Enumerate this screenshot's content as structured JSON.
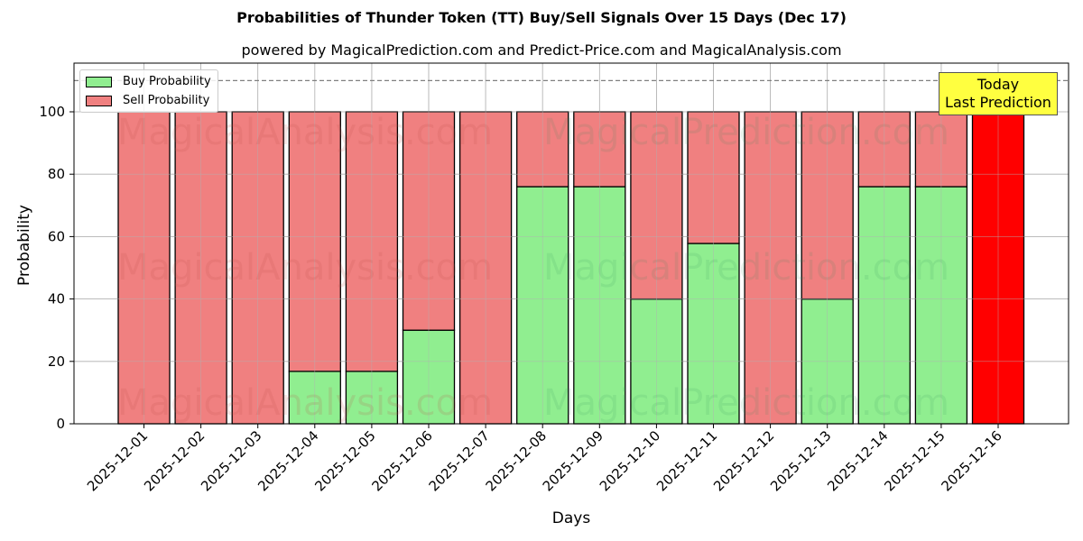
{
  "header": {
    "title": "Probabilities of Thunder Token (TT) Buy/Sell Signals Over 15 Days (Dec 17)",
    "subtitle": "powered by MagicalPrediction.com and Predict-Price.com and MagicalAnalysis.com"
  },
  "legend": {
    "buy_label": "Buy Probability",
    "sell_label": "Sell Probability"
  },
  "annotation": {
    "line1": "Today",
    "line2": "Last Prediction"
  },
  "watermarks": [
    "MagicalAnalysis.com",
    "MagicalPrediction.com"
  ],
  "colors": {
    "buy": "#90ee90",
    "sell": "#f08080",
    "today": "#ff0000",
    "annotation_bg": "#ffff40"
  },
  "chart_data": {
    "type": "bar",
    "stacked": true,
    "title": "Probabilities of Thunder Token (TT) Buy/Sell Signals Over 15 Days (Dec 17)",
    "subtitle": "powered by MagicalPrediction.com and Predict-Price.com and MagicalAnalysis.com",
    "xlabel": "Days",
    "ylabel": "Probability",
    "ylim": [
      0,
      115
    ],
    "yticks": [
      0,
      20,
      40,
      60,
      80,
      100
    ],
    "grid": true,
    "legend_position": "upper left",
    "reference_line": {
      "y": 110,
      "style": "dashed"
    },
    "categories": [
      "2025-12-01",
      "2025-12-02",
      "2025-12-03",
      "2025-12-04",
      "2025-12-05",
      "2025-12-06",
      "2025-12-07",
      "2025-12-08",
      "2025-12-09",
      "2025-12-10",
      "2025-12-11",
      "2025-12-12",
      "2025-12-13",
      "2025-12-14",
      "2025-12-15",
      "2025-12-16"
    ],
    "series": [
      {
        "name": "Buy Probability",
        "values": [
          0,
          0,
          0,
          16.8,
          16.8,
          30,
          0,
          76,
          76,
          40,
          57.8,
          0,
          40,
          76,
          76,
          0
        ]
      },
      {
        "name": "Sell Probability",
        "values": [
          100,
          100,
          100,
          83.2,
          83.2,
          70,
          100,
          24,
          24,
          60,
          42.2,
          100,
          60,
          24,
          24,
          100
        ]
      }
    ],
    "highlight": {
      "category": "2025-12-16",
      "label": "Today Last Prediction",
      "color": "#ff0000"
    }
  }
}
